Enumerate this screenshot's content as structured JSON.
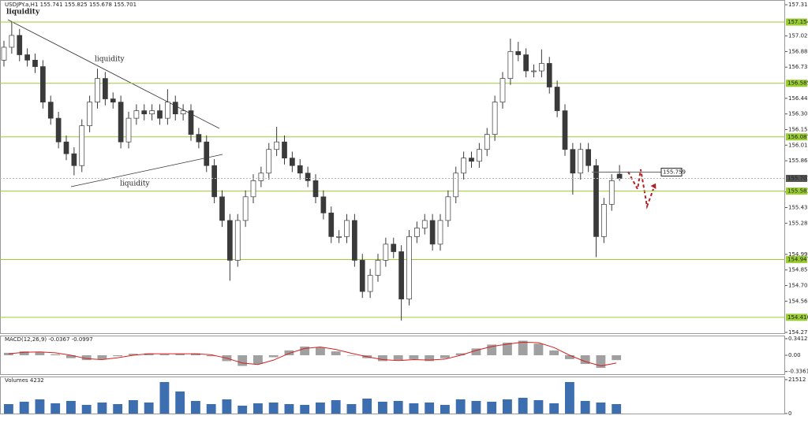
{
  "chart_data": [
    {
      "type": "candlestick",
      "title": "USDJPY.a,H1  155.741 155.825 155.678 155.701",
      "open": [
        156.8,
        156.92,
        157.03,
        156.85,
        156.8,
        156.74,
        156.41,
        156.26,
        156.04,
        155.93,
        155.82,
        156.19,
        156.41,
        156.63,
        156.44,
        156.41,
        156.04,
        156.26,
        156.33,
        156.3,
        156.33,
        156.26,
        156.41,
        156.3,
        156.33,
        156.11,
        156.04,
        155.82,
        155.53,
        155.31,
        154.94,
        155.31,
        155.53,
        155.68,
        155.75,
        155.97,
        156.04,
        155.89,
        155.82,
        155.75,
        155.68,
        155.53,
        155.38,
        155.16,
        155.16,
        155.31,
        154.94,
        154.65,
        154.8,
        154.94,
        155.09,
        155.02,
        154.58,
        155.16,
        155.24,
        155.31,
        155.09,
        155.31,
        155.53,
        155.75,
        155.89,
        155.86,
        155.97,
        156.11,
        156.41,
        156.63,
        156.88,
        156.85,
        156.7,
        156.7,
        156.77,
        156.55,
        156.33,
        155.97,
        155.75,
        155.97,
        155.82,
        155.16,
        155.46,
        155.741
      ],
      "high": [
        156.98,
        157.16,
        157.09,
        156.91,
        156.86,
        156.8,
        156.47,
        156.32,
        156.1,
        155.99,
        156.25,
        156.47,
        156.72,
        156.69,
        156.5,
        156.47,
        156.32,
        156.39,
        156.39,
        156.39,
        156.39,
        156.53,
        156.47,
        156.39,
        156.39,
        156.17,
        156.1,
        155.88,
        155.59,
        155.37,
        155.37,
        155.59,
        155.74,
        155.81,
        156.03,
        156.18,
        156.1,
        155.95,
        155.88,
        155.81,
        155.74,
        155.59,
        155.44,
        155.22,
        155.37,
        155.37,
        155.0,
        154.86,
        155.0,
        155.15,
        155.15,
        155.08,
        155.22,
        155.3,
        155.37,
        155.37,
        155.37,
        155.59,
        155.81,
        155.95,
        155.95,
        156.03,
        156.17,
        156.47,
        156.69,
        157.0,
        156.97,
        156.91,
        156.76,
        156.9,
        156.83,
        156.61,
        156.39,
        156.03,
        156.03,
        156.03,
        155.88,
        155.52,
        155.74,
        155.825
      ],
      "low": [
        156.74,
        156.86,
        156.79,
        156.74,
        156.68,
        156.35,
        156.2,
        155.98,
        155.87,
        155.73,
        155.76,
        156.13,
        156.35,
        156.38,
        156.35,
        155.98,
        155.98,
        156.2,
        156.24,
        156.24,
        156.2,
        156.2,
        156.24,
        156.24,
        156.05,
        155.98,
        155.76,
        155.47,
        155.25,
        154.75,
        154.88,
        155.25,
        155.47,
        155.62,
        155.69,
        155.91,
        155.83,
        155.76,
        155.69,
        155.62,
        155.47,
        155.32,
        155.1,
        155.1,
        155.1,
        154.88,
        154.59,
        154.59,
        154.74,
        154.88,
        154.96,
        154.38,
        154.52,
        155.1,
        155.18,
        155.03,
        155.03,
        155.25,
        155.47,
        155.69,
        155.8,
        155.8,
        155.91,
        156.05,
        156.35,
        156.57,
        156.79,
        156.64,
        156.64,
        156.64,
        156.49,
        156.27,
        155.91,
        155.55,
        155.69,
        155.76,
        154.97,
        155.1,
        155.4,
        155.678
      ],
      "close": [
        156.92,
        157.03,
        156.85,
        156.8,
        156.74,
        156.41,
        156.26,
        156.04,
        155.93,
        155.82,
        156.19,
        156.41,
        156.63,
        156.44,
        156.41,
        156.04,
        156.26,
        156.33,
        156.3,
        156.33,
        156.26,
        156.41,
        156.3,
        156.33,
        156.11,
        156.04,
        155.82,
        155.53,
        155.31,
        154.94,
        155.31,
        155.53,
        155.68,
        155.75,
        155.97,
        156.04,
        155.89,
        155.82,
        155.75,
        155.68,
        155.53,
        155.38,
        155.16,
        155.16,
        155.31,
        154.94,
        154.65,
        154.8,
        154.94,
        155.09,
        155.02,
        154.58,
        155.16,
        155.24,
        155.31,
        155.09,
        155.31,
        155.53,
        155.75,
        155.89,
        155.86,
        155.97,
        156.11,
        156.41,
        156.63,
        156.88,
        156.85,
        156.7,
        156.7,
        156.77,
        156.55,
        156.33,
        155.97,
        155.75,
        155.97,
        155.82,
        155.16,
        155.46,
        155.68,
        155.701
      ],
      "up_color": "#ffffff",
      "down_color": "#3a3a3a",
      "wick_color": "#3a3a3a",
      "ylim": [
        154.255,
        157.359
      ],
      "yticks": [
        157.315,
        157.025,
        {
          "value": 156.88,
          "label": "156.880"
        },
        156.735,
        156.445,
        {
          "value": 156.3,
          "label": "156.300"
        },
        156.155,
        {
          "value": 156.01,
          "label": "156.010"
        },
        155.865,
        155.575,
        {
          "value": 155.43,
          "label": "155.430"
        },
        155.285,
        154.995,
        {
          "value": 154.85,
          "label": "154.850"
        },
        154.705,
        {
          "value": 154.56,
          "label": "154.560"
        },
        {
          "value": 154.27,
          "label": "154.270"
        }
      ],
      "levels": [
        157.154,
        156.585,
        156.087,
        155.583,
        154.947,
        {
          "value": 154.41,
          "label": "154.410"
        }
      ],
      "level_color": "#9acd32",
      "current_price": 155.701,
      "marker_price": 155.759,
      "annotations": [
        "liquidity",
        "liquidity",
        "liquidity"
      ]
    },
    {
      "type": "macd",
      "title": "MACD(12,26,9) -0.0367 -0.0997",
      "histogram": [
        0.05,
        0.08,
        0.06,
        0.02,
        -0.06,
        -0.1,
        -0.08,
        -0.02,
        0.03,
        0.04,
        0.02,
        0.03,
        0.04,
        -0.02,
        -0.12,
        -0.22,
        -0.18,
        -0.04,
        0.1,
        0.18,
        0.16,
        0.08,
        0.0,
        -0.06,
        -0.12,
        -0.1,
        -0.08,
        -0.12,
        -0.06,
        0.04,
        0.14,
        0.22,
        0.26,
        0.3,
        0.24,
        0.1,
        -0.08,
        -0.18,
        -0.26,
        -0.1
      ],
      "signal": [
        0.03,
        0.06,
        0.07,
        0.05,
        0.0,
        -0.07,
        -0.09,
        -0.05,
        0.0,
        0.03,
        0.03,
        0.03,
        0.03,
        0.01,
        -0.06,
        -0.16,
        -0.19,
        -0.1,
        0.04,
        0.14,
        0.17,
        0.12,
        0.04,
        -0.03,
        -0.09,
        -0.11,
        -0.09,
        -0.1,
        -0.08,
        0.0,
        0.1,
        0.18,
        0.23,
        0.27,
        0.26,
        0.16,
        0.0,
        -0.13,
        -0.22,
        -0.16
      ],
      "histogram_color": "#a0a0a0",
      "signal_color": "#d62020",
      "ylim": [
        -0.39,
        0.39
      ],
      "yticks": [
        0.3412,
        {
          "value": 0,
          "label": "0.00"
        },
        -0.3361
      ]
    },
    {
      "type": "volume",
      "title": "Volumes 4232",
      "values": [
        6000,
        7500,
        9000,
        6500,
        8000,
        5500,
        7000,
        6000,
        8500,
        7000,
        20000,
        14000,
        8000,
        6000,
        9000,
        5000,
        6500,
        7000,
        6000,
        5500,
        7000,
        8500,
        6000,
        9500,
        7500,
        8000,
        6500,
        7000,
        5500,
        9000,
        8000,
        7500,
        9000,
        10000,
        8500,
        6500,
        20000,
        8000,
        7000,
        6000
      ],
      "color": "#3d6fb0",
      "ylim": [
        0,
        23000
      ],
      "yticks": [
        21512,
        0
      ]
    }
  ]
}
